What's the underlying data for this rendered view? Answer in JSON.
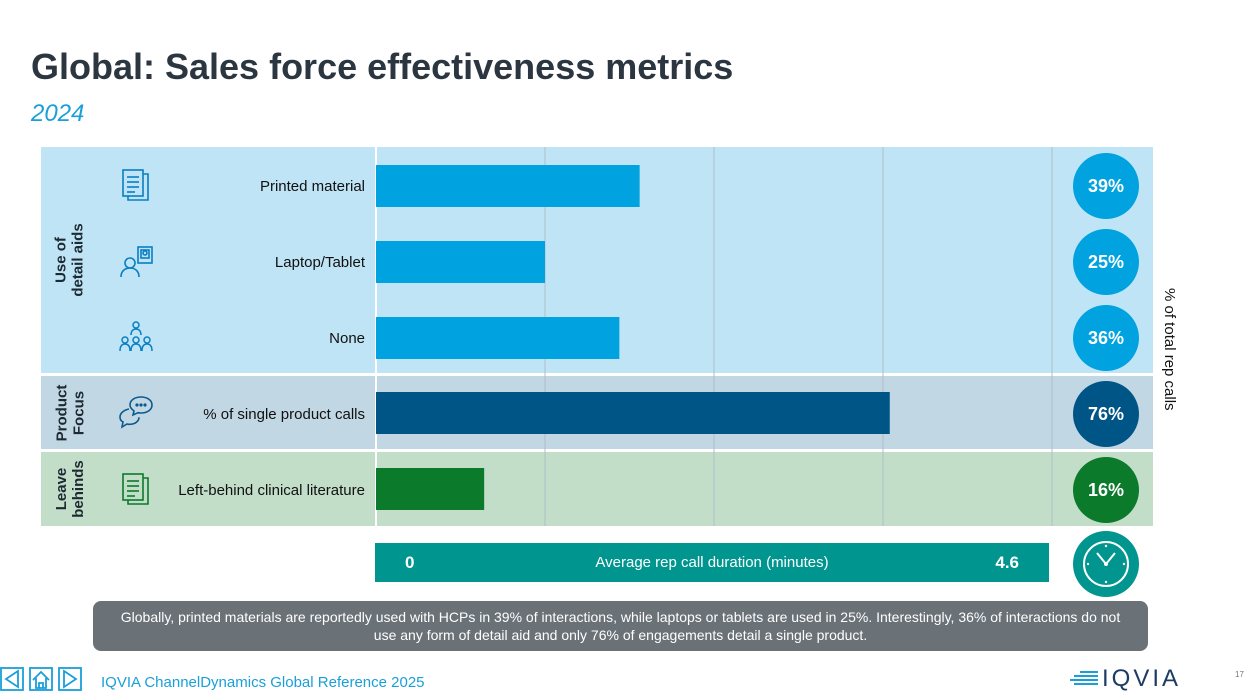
{
  "page": {
    "title": "Global: Sales force effectiveness metrics",
    "subtitle": "2024"
  },
  "colors": {
    "detail_aid": "#00a3e0",
    "product_focus": "#005587",
    "leave_behind": "#0b7a2a",
    "duration": "#00968f"
  },
  "groups": [
    {
      "label": "Use of\ndetail aids"
    },
    {
      "label": "Product\nFocus"
    },
    {
      "label": "Leave\nbehinds"
    }
  ],
  "chart_data": {
    "type": "bar",
    "orientation": "horizontal",
    "categories": [
      "Printed material",
      "Laptop/Tablet",
      "None",
      "% of single product calls",
      "Left-behind clinical literature"
    ],
    "values": [
      39,
      25,
      36,
      76,
      16
    ],
    "value_labels": [
      "39%",
      "25%",
      "36%",
      "76%",
      "16%"
    ],
    "icons": [
      "document-icon",
      "laptop-user-icon",
      "group-people-icon",
      "speech-bubble-icon",
      "clinical-literature-icon"
    ],
    "groups": [
      "Use of detail aids",
      "Use of detail aids",
      "Use of detail aids",
      "Product Focus",
      "Leave behinds"
    ],
    "ylabel": "% of total rep calls",
    "xlim": [
      0,
      100
    ],
    "grid": true
  },
  "duration": {
    "label": "Average rep call duration (minutes)",
    "min_label": "0",
    "value": "4.6"
  },
  "note": "Globally, printed materials are reportedly used with HCPs in 39% of interactions, while laptops or tablets are used in 25%. Interestingly, 36% of interactions do not use any form of detail aid and only 76% of engagements detail a single product.",
  "footer": {
    "source": "IQVIA ChannelDynamics Global Reference 2025",
    "logo": "IQVIA",
    "page_number": "17"
  }
}
